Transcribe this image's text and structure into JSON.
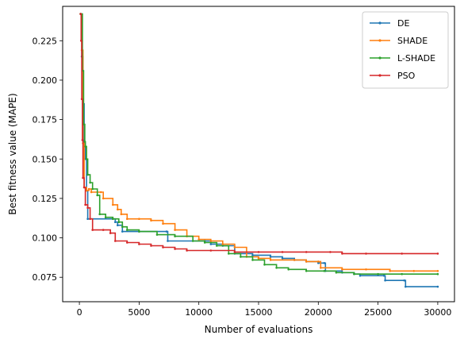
{
  "chart_data": {
    "type": "line",
    "title": "",
    "xlabel": "Number of evaluations",
    "ylabel": "Best fitness value (MAPE)",
    "xlim": [
      -1400,
      31400
    ],
    "ylim": [
      0.0595,
      0.2468
    ],
    "xticks": [
      0,
      5000,
      10000,
      15000,
      20000,
      25000,
      30000
    ],
    "xtick_labels": [
      "0",
      "5000",
      "10000",
      "15000",
      "20000",
      "25000",
      "30000"
    ],
    "yticks": [
      0.075,
      0.1,
      0.125,
      0.15,
      0.175,
      0.2,
      0.225
    ],
    "ytick_labels": [
      "0.075",
      "0.100",
      "0.125",
      "0.150",
      "0.175",
      "0.200",
      "0.225"
    ],
    "grid": false,
    "legend_position": "top-right",
    "series": [
      {
        "name": "DE",
        "color": "#1f77b4",
        "points": [
          [
            100,
            0.242
          ],
          [
            200,
            0.215
          ],
          [
            300,
            0.185
          ],
          [
            400,
            0.16
          ],
          [
            500,
            0.15
          ],
          [
            600,
            0.13
          ],
          [
            700,
            0.112
          ],
          [
            2800,
            0.112
          ],
          [
            3000,
            0.11
          ],
          [
            3200,
            0.108
          ],
          [
            3600,
            0.104
          ],
          [
            5000,
            0.104
          ],
          [
            7300,
            0.104
          ],
          [
            7400,
            0.098
          ],
          [
            10500,
            0.098
          ],
          [
            11000,
            0.096
          ],
          [
            12000,
            0.095
          ],
          [
            13000,
            0.09
          ],
          [
            14500,
            0.089
          ],
          [
            16000,
            0.088
          ],
          [
            17000,
            0.087
          ],
          [
            18000,
            0.086
          ],
          [
            19000,
            0.085
          ],
          [
            20000,
            0.084
          ],
          [
            20500,
            0.084
          ],
          [
            20600,
            0.079
          ],
          [
            22000,
            0.078
          ],
          [
            23000,
            0.077
          ],
          [
            23500,
            0.076
          ],
          [
            25500,
            0.076
          ],
          [
            25600,
            0.073
          ],
          [
            27200,
            0.073
          ],
          [
            27300,
            0.069
          ],
          [
            30000,
            0.069
          ]
        ]
      },
      {
        "name": "SHADE",
        "color": "#ff7f0e",
        "points": [
          [
            100,
            0.242
          ],
          [
            200,
            0.219
          ],
          [
            300,
            0.16
          ],
          [
            400,
            0.132
          ],
          [
            600,
            0.13
          ],
          [
            800,
            0.131
          ],
          [
            1000,
            0.129
          ],
          [
            1800,
            0.129
          ],
          [
            2000,
            0.125
          ],
          [
            2800,
            0.121
          ],
          [
            3200,
            0.118
          ],
          [
            3500,
            0.115
          ],
          [
            4000,
            0.112
          ],
          [
            5000,
            0.112
          ],
          [
            6000,
            0.111
          ],
          [
            7000,
            0.109
          ],
          [
            8000,
            0.105
          ],
          [
            9000,
            0.101
          ],
          [
            10000,
            0.099
          ],
          [
            11000,
            0.098
          ],
          [
            12000,
            0.096
          ],
          [
            13000,
            0.094
          ],
          [
            14000,
            0.088
          ],
          [
            15000,
            0.087
          ],
          [
            16000,
            0.086
          ],
          [
            18000,
            0.086
          ],
          [
            19000,
            0.085
          ],
          [
            20000,
            0.085
          ],
          [
            20200,
            0.081
          ],
          [
            22000,
            0.08
          ],
          [
            24000,
            0.08
          ],
          [
            26000,
            0.079
          ],
          [
            28000,
            0.079
          ],
          [
            30000,
            0.079
          ]
        ]
      },
      {
        "name": "L-SHADE",
        "color": "#2ca02c",
        "points": [
          [
            100,
            0.242
          ],
          [
            250,
            0.206
          ],
          [
            350,
            0.172
          ],
          [
            450,
            0.161
          ],
          [
            500,
            0.158
          ],
          [
            600,
            0.15
          ],
          [
            700,
            0.14
          ],
          [
            900,
            0.135
          ],
          [
            1100,
            0.131
          ],
          [
            1500,
            0.127
          ],
          [
            1700,
            0.115
          ],
          [
            2200,
            0.113
          ],
          [
            2800,
            0.112
          ],
          [
            3300,
            0.11
          ],
          [
            3600,
            0.107
          ],
          [
            4000,
            0.105
          ],
          [
            5000,
            0.104
          ],
          [
            6500,
            0.102
          ],
          [
            8000,
            0.101
          ],
          [
            9500,
            0.098
          ],
          [
            10500,
            0.097
          ],
          [
            11500,
            0.095
          ],
          [
            12500,
            0.09
          ],
          [
            13500,
            0.088
          ],
          [
            14500,
            0.086
          ],
          [
            15500,
            0.083
          ],
          [
            16500,
            0.081
          ],
          [
            17500,
            0.08
          ],
          [
            19000,
            0.079
          ],
          [
            20500,
            0.079
          ],
          [
            21500,
            0.078
          ],
          [
            23000,
            0.077
          ],
          [
            25000,
            0.077
          ],
          [
            27000,
            0.077
          ],
          [
            30000,
            0.077
          ]
        ]
      },
      {
        "name": "PSO",
        "color": "#d62728",
        "points": [
          [
            100,
            0.242
          ],
          [
            150,
            0.225
          ],
          [
            200,
            0.188
          ],
          [
            250,
            0.162
          ],
          [
            300,
            0.138
          ],
          [
            400,
            0.132
          ],
          [
            500,
            0.121
          ],
          [
            700,
            0.119
          ],
          [
            900,
            0.112
          ],
          [
            1100,
            0.105
          ],
          [
            2000,
            0.105
          ],
          [
            2600,
            0.103
          ],
          [
            3000,
            0.098
          ],
          [
            4000,
            0.097
          ],
          [
            5000,
            0.096
          ],
          [
            6000,
            0.095
          ],
          [
            7000,
            0.094
          ],
          [
            8000,
            0.093
          ],
          [
            9000,
            0.092
          ],
          [
            11000,
            0.092
          ],
          [
            13000,
            0.091
          ],
          [
            15000,
            0.091
          ],
          [
            17000,
            0.091
          ],
          [
            19000,
            0.091
          ],
          [
            21000,
            0.091
          ],
          [
            22000,
            0.09
          ],
          [
            24000,
            0.09
          ],
          [
            27000,
            0.09
          ],
          [
            30000,
            0.09
          ]
        ]
      }
    ]
  }
}
